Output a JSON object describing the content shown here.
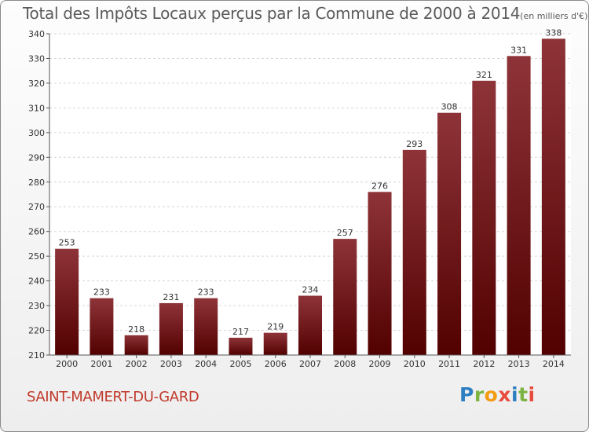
{
  "chart_data": {
    "type": "bar",
    "title": "Total des Impôts Locaux perçus par la Commune de 2000 à 2014",
    "unit_label": "(en milliers d'€)",
    "categories": [
      "2000",
      "2001",
      "2002",
      "2003",
      "2004",
      "2005",
      "2006",
      "2007",
      "2008",
      "2009",
      "2010",
      "2011",
      "2012",
      "2013",
      "2014"
    ],
    "values": [
      253,
      233,
      218,
      231,
      233,
      217,
      219,
      234,
      257,
      276,
      293,
      308,
      321,
      331,
      338
    ],
    "ylim": [
      210,
      340
    ],
    "yticks": [
      210,
      220,
      230,
      240,
      250,
      260,
      270,
      280,
      290,
      300,
      310,
      320,
      330,
      340
    ],
    "xlabel": "",
    "ylabel": "",
    "grid": true,
    "bar_color_top": "#8e3439",
    "bar_color_bottom": "#520000"
  },
  "footer": {
    "commune": "SAINT-MAMERT-DU-GARD",
    "brand_letters": [
      {
        "char": "P",
        "color": "#2e7fc1"
      },
      {
        "char": "r",
        "color": "#7cb342"
      },
      {
        "char": "o",
        "color": "#f39c12"
      },
      {
        "char": "x",
        "color": "#e74c3c"
      },
      {
        "char": "i",
        "color": "#2e7fc1"
      },
      {
        "char": "t",
        "color": "#7cb342"
      },
      {
        "char": "i",
        "color": "#e74c3c"
      }
    ]
  }
}
